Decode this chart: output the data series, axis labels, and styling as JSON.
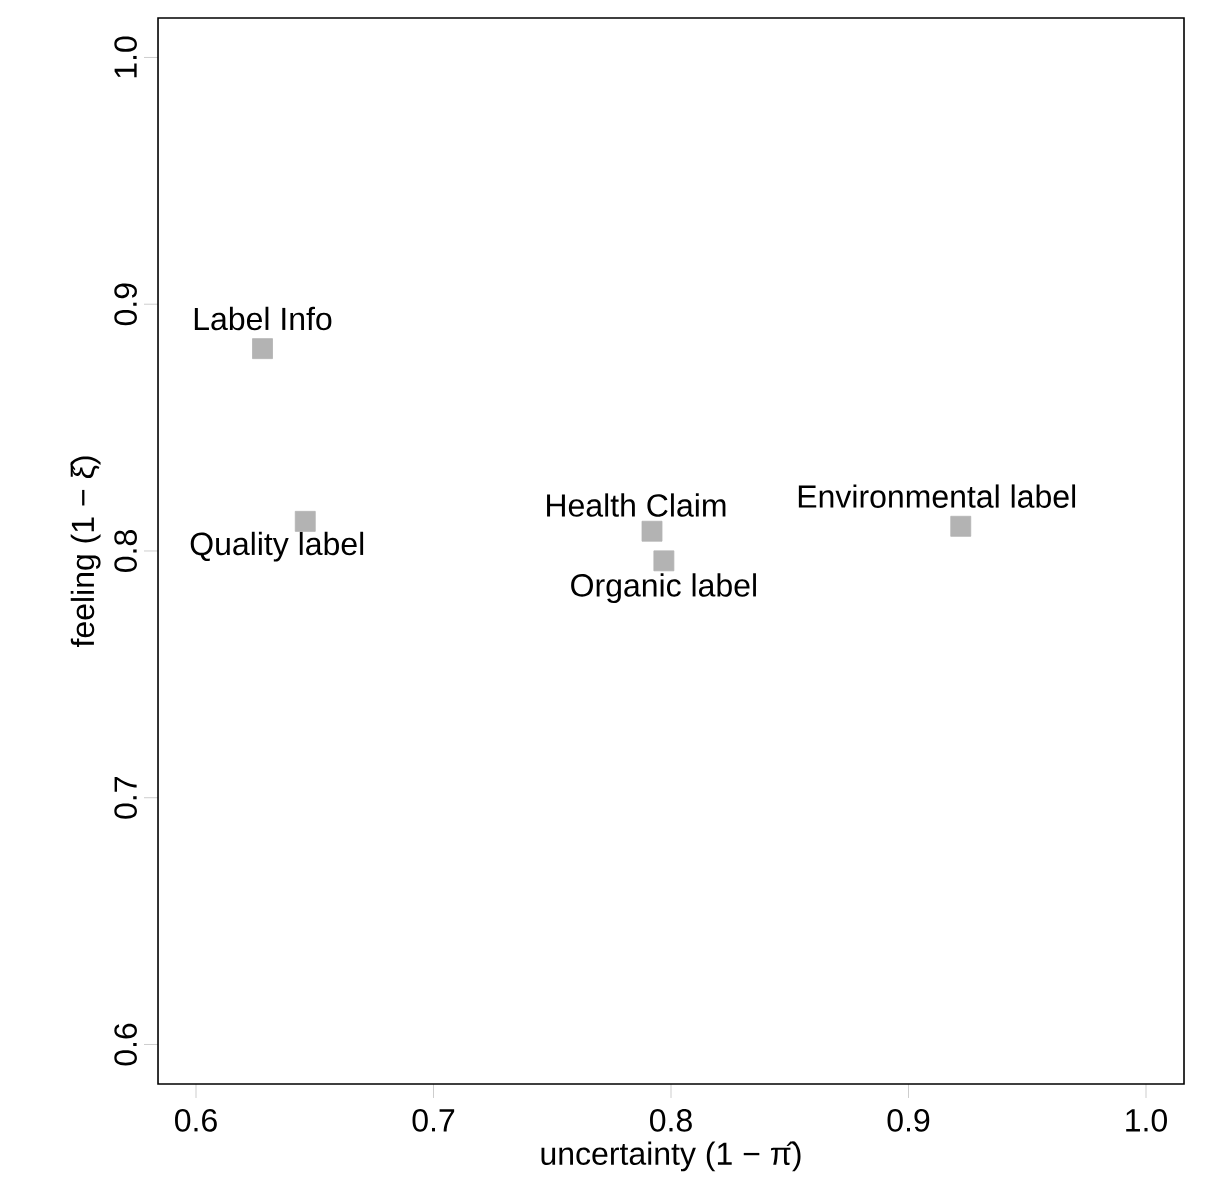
{
  "chart_data": {
    "type": "scatter",
    "xlabel": "uncertainty (1 − π̂)",
    "ylabel": "feeling (1 − ξ̂)",
    "x": [
      0.628,
      0.646,
      0.792,
      0.797,
      0.922
    ],
    "series": [
      {
        "color": "#b3b3b3",
        "values": [
          0.882,
          0.812,
          0.808,
          0.796,
          0.81
        ]
      }
    ],
    "annotations": [
      {
        "text": "Label Info",
        "x": 0.628,
        "y": 0.882
      },
      {
        "text": "Quality label",
        "x": 0.646,
        "y": 0.812
      },
      {
        "text": "Health Claim",
        "x": 0.792,
        "y": 0.808
      },
      {
        "text": "Organic label",
        "x": 0.797,
        "y": 0.796
      },
      {
        "text": "Environmental label",
        "x": 0.922,
        "y": 0.81
      }
    ],
    "xlim": [
      0.584,
      1.016
    ],
    "ylim": [
      0.584,
      1.016
    ],
    "xticks": [
      0.6,
      0.7,
      0.8,
      0.9,
      {
        "value": 1,
        "label": "1.0"
      }
    ],
    "yticks": [
      0.6,
      0.7,
      0.8,
      0.9,
      {
        "value": 1,
        "label": "1.0"
      }
    ],
    "marker": "square"
  }
}
